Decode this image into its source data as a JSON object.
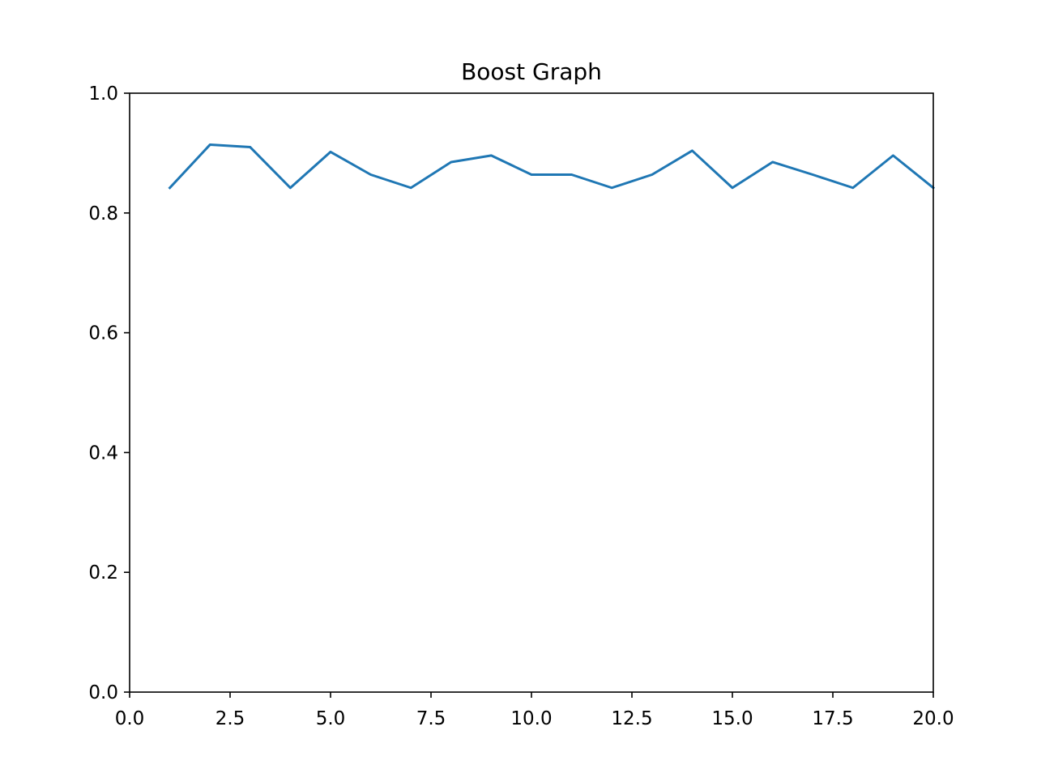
{
  "chart_data": {
    "type": "line",
    "title": "Boost Graph",
    "xlabel": "",
    "ylabel": "",
    "xlim": [
      0.0,
      20.0
    ],
    "ylim": [
      0.0,
      1.0
    ],
    "x_ticks": [
      "0.0",
      "2.5",
      "5.0",
      "7.5",
      "10.0",
      "12.5",
      "15.0",
      "17.5",
      "20.0"
    ],
    "y_ticks": [
      "0.0",
      "0.2",
      "0.4",
      "0.6",
      "0.8",
      "1.0"
    ],
    "grid": false,
    "legend": "none",
    "series": [
      {
        "color": "#1f77b4",
        "x": [
          1,
          2,
          3,
          4,
          5,
          6,
          7,
          8,
          9,
          10,
          11,
          12,
          13,
          14,
          15,
          16,
          17,
          18,
          19,
          20
        ],
        "y": [
          0.842,
          0.914,
          0.91,
          0.842,
          0.902,
          0.864,
          0.842,
          0.885,
          0.896,
          0.864,
          0.864,
          0.842,
          0.864,
          0.904,
          0.842,
          0.885,
          0.864,
          0.842,
          0.896,
          0.842
        ]
      }
    ]
  }
}
